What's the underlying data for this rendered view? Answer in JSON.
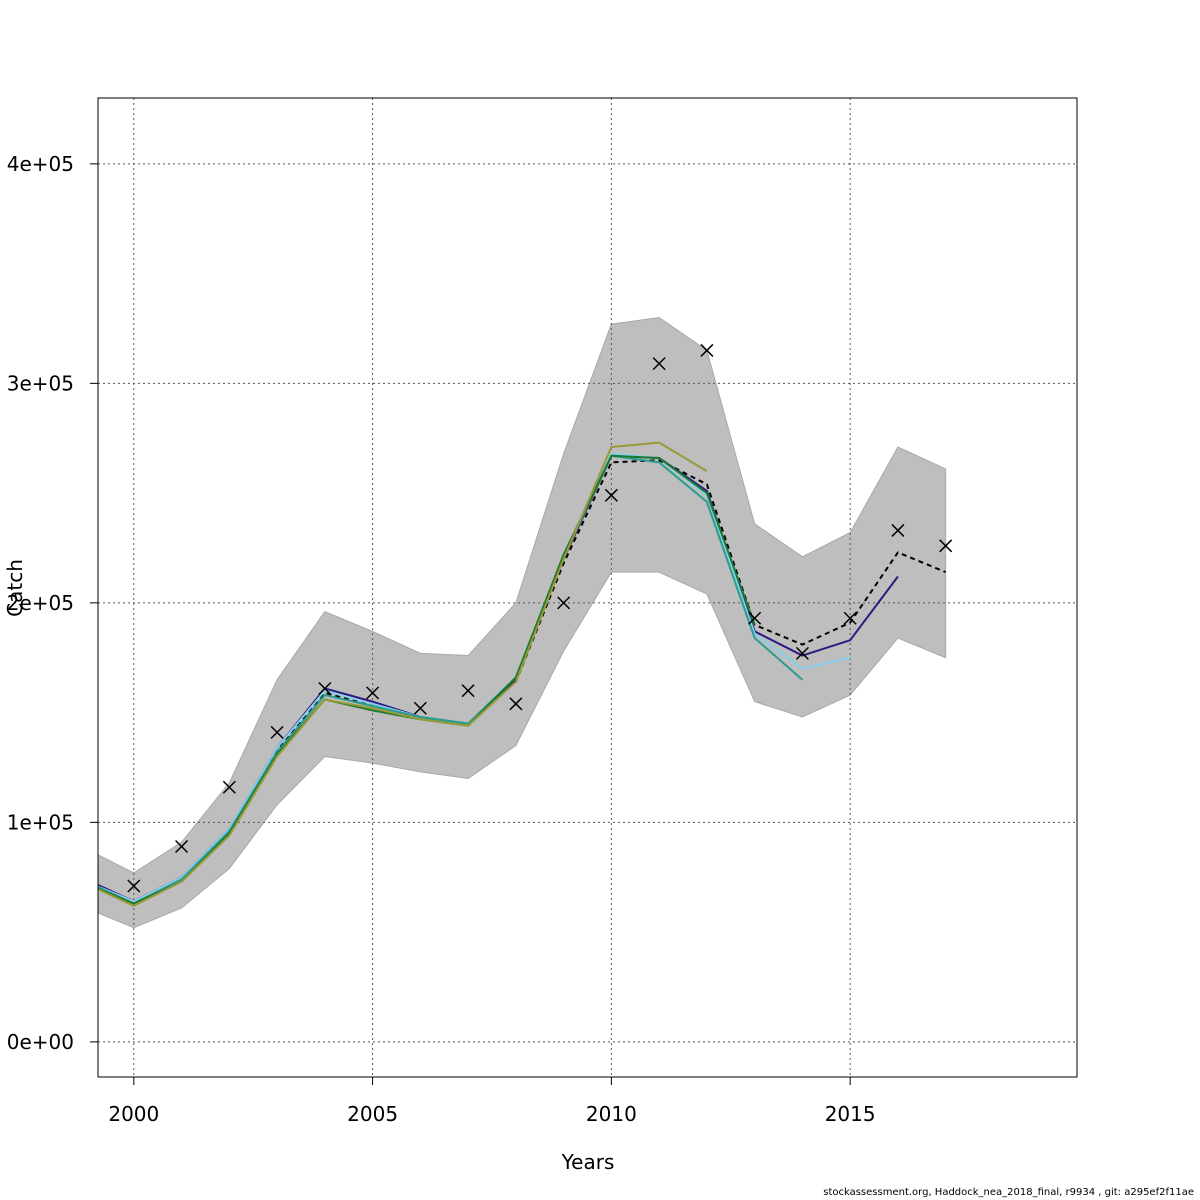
{
  "chart_data": {
    "type": "line",
    "title": "",
    "xlabel": "Years",
    "ylabel": "Catch",
    "xlim": [
      1999.25,
      2019.75
    ],
    "ylim": [
      -16000,
      430000
    ],
    "x_ticks": [
      2000,
      2005,
      2010,
      2015
    ],
    "x_tick_labels": [
      "2000",
      "2005",
      "2010",
      "2015"
    ],
    "y_ticks": [
      0,
      100000,
      200000,
      300000,
      400000
    ],
    "y_tick_labels": [
      "0e+00",
      "1e+05",
      "2e+05",
      "3e+05",
      "4e+05"
    ],
    "grid": true,
    "legend": "none",
    "confidence_band": {
      "color": "#bebebe",
      "x": [
        1999,
        2000,
        2001,
        2002,
        2003,
        2004,
        2005,
        2006,
        2007,
        2008,
        2009,
        2010,
        2011,
        2012,
        2013,
        2014,
        2015,
        2016,
        2017
      ],
      "lower": [
        61000,
        52000,
        61000,
        79000,
        108000,
        130000,
        127000,
        123000,
        120000,
        135000,
        178000,
        214000,
        214000,
        204000,
        155000,
        148000,
        158000,
        184000,
        175000
      ],
      "upper": [
        88000,
        77000,
        91000,
        118000,
        165000,
        196000,
        187000,
        177000,
        176000,
        200000,
        268000,
        327000,
        330000,
        315000,
        236000,
        221000,
        232000,
        271000,
        261000
      ]
    },
    "observed": {
      "marker": "x",
      "color": "#000000",
      "x": [
        2000,
        2001,
        2002,
        2003,
        2004,
        2005,
        2006,
        2007,
        2008,
        2009,
        2010,
        2011,
        2012,
        2013,
        2014,
        2015,
        2016,
        2017
      ],
      "values": [
        71000,
        89000,
        116000,
        141000,
        161000,
        159000,
        152000,
        160000,
        154000,
        200000,
        249000,
        309000,
        315000,
        193000,
        177000,
        193000,
        233000,
        226000
      ]
    },
    "series": [
      {
        "color": "#000000",
        "dash": "5,4",
        "x": [
          1999,
          2000,
          2001,
          2002,
          2003,
          2004,
          2005,
          2006,
          2007,
          2008,
          2009,
          2010,
          2011,
          2012,
          2013,
          2014,
          2015,
          2016,
          2017
        ],
        "values": [
          73000,
          64000,
          75000,
          96000,
          133000,
          159000,
          153000,
          148000,
          145000,
          164000,
          218000,
          264000,
          265000,
          254000,
          190000,
          181000,
          191000,
          223000,
          214000
        ]
      },
      {
        "color": "#2d1a82",
        "dash": "",
        "x": [
          1999,
          2000,
          2001,
          2002,
          2003,
          2004,
          2005,
          2006,
          2007,
          2008,
          2009,
          2010,
          2011,
          2012,
          2013,
          2014,
          2015,
          2016
        ],
        "values": [
          74000,
          64000,
          75000,
          97000,
          134000,
          161000,
          155000,
          148000,
          145000,
          165000,
          220000,
          267000,
          266000,
          251000,
          187000,
          176000,
          183000,
          212000
        ]
      },
      {
        "color": "#87ceeb",
        "dash": "",
        "x": [
          1999,
          2000,
          2001,
          2002,
          2003,
          2004,
          2005,
          2006,
          2007,
          2008,
          2009,
          2010,
          2011,
          2012,
          2013,
          2014,
          2015
        ],
        "values": [
          73000,
          64000,
          75000,
          97000,
          134000,
          160000,
          154000,
          148000,
          145000,
          166000,
          221000,
          268000,
          266000,
          249000,
          186000,
          170000,
          175000
        ]
      },
      {
        "color": "#2a9d8f",
        "dash": "",
        "x": [
          1999,
          2000,
          2001,
          2002,
          2003,
          2004,
          2005,
          2006,
          2007,
          2008,
          2009,
          2010,
          2011,
          2012,
          2013,
          2014
        ],
        "values": [
          73000,
          63000,
          74000,
          96000,
          132000,
          158000,
          153000,
          148000,
          145000,
          166000,
          221000,
          267000,
          264000,
          246000,
          184000,
          165000
        ]
      },
      {
        "color": "#1a7a2e",
        "dash": "",
        "x": [
          1999,
          2000,
          2001,
          2002,
          2003,
          2004,
          2005,
          2006,
          2007,
          2008,
          2009,
          2010,
          2011,
          2012,
          2013
        ],
        "values": [
          72000,
          63000,
          73000,
          95000,
          131000,
          156000,
          151000,
          147000,
          144000,
          166000,
          222000,
          267000,
          266000,
          250000,
          190000
        ]
      },
      {
        "color": "#9a9a38",
        "dash": "",
        "x": [
          1999,
          2000,
          2001,
          2002,
          2003,
          2004,
          2005,
          2006,
          2007,
          2008,
          2009,
          2010,
          2011,
          2012
        ],
        "values": [
          72000,
          62000,
          73000,
          94000,
          130000,
          156000,
          152000,
          147000,
          144000,
          164000,
          220000,
          271000,
          273000,
          260000
        ]
      }
    ]
  },
  "footer": {
    "credit": "stockassessment.org, Haddock_nea_2018_final, r9934 , git: a295ef2f11ae"
  }
}
